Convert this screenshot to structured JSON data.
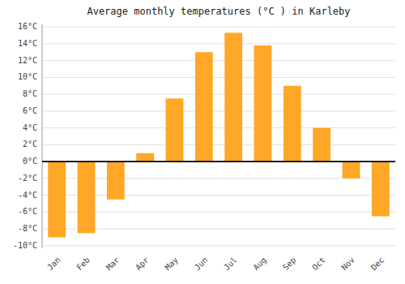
{
  "chart_data": {
    "type": "bar",
    "title": "Average monthly temperatures (°C ) in Karleby",
    "categories": [
      "Jan",
      "Feb",
      "Mar",
      "Apr",
      "May",
      "Jun",
      "Jul",
      "Aug",
      "Sep",
      "Oct",
      "Nov",
      "Dec"
    ],
    "values": [
      -9.0,
      -8.5,
      -4.5,
      1.0,
      7.5,
      13.0,
      15.3,
      13.8,
      9.0,
      4.0,
      -2.0,
      -6.5
    ],
    "color": "#FFA726",
    "ylim": [
      -10.3,
      16.3
    ],
    "yticks": [
      {
        "value": -10,
        "label": "-10°C"
      },
      {
        "value": -8,
        "label": "-8°C"
      },
      {
        "value": -6,
        "label": "-6°C"
      },
      {
        "value": -4,
        "label": "-4°C"
      },
      {
        "value": -2,
        "label": "-2°C"
      },
      {
        "value": 0,
        "label": "0°C"
      },
      {
        "value": 2,
        "label": "2°C"
      },
      {
        "value": 4,
        "label": "4°C"
      },
      {
        "value": 6,
        "label": "6°C"
      },
      {
        "value": 8,
        "label": "8°C"
      },
      {
        "value": 10,
        "label": "10°C"
      },
      {
        "value": 12,
        "label": "12°C"
      },
      {
        "value": 14,
        "label": "14°C"
      },
      {
        "value": 16,
        "label": "16°C"
      }
    ],
    "grid": true
  }
}
